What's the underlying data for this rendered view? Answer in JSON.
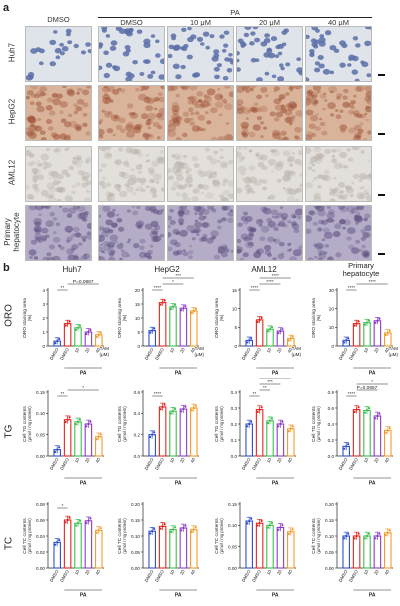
{
  "panel_a": {
    "letter": "a",
    "treatment_label": "PA",
    "columns": [
      "DMSO",
      "DMSO",
      "10 μM",
      "20 μM",
      "40 μM"
    ],
    "rows": [
      {
        "label": "Huh7",
        "tint": "#dfe3ea",
        "cell": "#5b6fa8"
      },
      {
        "label": "HepG2",
        "tint": "#d9b49a",
        "cell": "#a0563c"
      },
      {
        "label": "AML12",
        "tint": "#e3e0dc",
        "cell": "#b9b2ac"
      },
      {
        "label": "Primary hepatocyte",
        "tint": "#b5adc8",
        "cell": "#5b4d7d"
      }
    ]
  },
  "panel_b": {
    "letter": "b",
    "row_tags": [
      "ORO",
      "TG",
      "TC"
    ],
    "group_label": "PA",
    "x_labels": [
      "DMSO",
      "DMSO",
      "10",
      "20",
      "40"
    ],
    "colors": [
      "#2f4fd0",
      "#e2261e",
      "#3cbf50",
      "#8e3ccb",
      "#f39c2b"
    ],
    "tam_label": "TAM",
    "tam_unit": "(μM)",
    "cell_lines": [
      "Huh7",
      "HepG2",
      "AML12",
      "Primary hepatocyte"
    ]
  },
  "chart_data": [
    {
      "type": "bar",
      "row": "ORO",
      "title": "Huh7",
      "ylabel": "ORO staining area(%)",
      "ylim": [
        0,
        4
      ],
      "yticks": [
        "0",
        "1",
        "2",
        "3",
        "4"
      ],
      "categories": [
        "DMSO",
        "DMSO",
        "10",
        "20",
        "40"
      ],
      "values": [
        0.35,
        1.6,
        1.3,
        1.0,
        0.8
      ],
      "annotations": [
        {
          "text": "**",
          "from": 0,
          "to": 1
        },
        {
          "text": "P=0.0987",
          "from": 1,
          "to": 4
        }
      ]
    },
    {
      "type": "bar",
      "row": "ORO",
      "title": "HepG2",
      "ylabel": "ORO staining area(%)",
      "ylim": [
        0,
        20
      ],
      "yticks": [
        "0",
        "5",
        "10",
        "15",
        "20"
      ],
      "categories": [
        "DMSO",
        "DMSO",
        "10",
        "20",
        "40"
      ],
      "values": [
        5.5,
        15.5,
        14.0,
        13.5,
        12.5
      ],
      "annotations": [
        {
          "text": "****",
          "from": 0,
          "to": 1
        },
        {
          "text": "*",
          "from": 1,
          "to": 3
        },
        {
          "text": "***",
          "from": 1,
          "to": 4
        }
      ]
    },
    {
      "type": "bar",
      "row": "ORO",
      "title": "AML12",
      "ylabel": "ORO staining area(%)",
      "ylim": [
        0,
        15
      ],
      "yticks": [
        "0",
        "5",
        "10",
        "15"
      ],
      "categories": [
        "DMSO",
        "DMSO",
        "10",
        "20",
        "40"
      ],
      "values": [
        1.5,
        7.0,
        4.5,
        4.0,
        2.0
      ],
      "annotations": [
        {
          "text": "****",
          "from": 0,
          "to": 1
        },
        {
          "text": "****",
          "from": 1,
          "to": 3
        },
        {
          "text": "****",
          "from": 1,
          "to": 4
        }
      ]
    },
    {
      "type": "bar",
      "row": "ORO",
      "title": "Primary hepatocyte",
      "ylabel": "ORO staining area(%)",
      "ylim": [
        0,
        30
      ],
      "yticks": [
        "0",
        "10",
        "20",
        "30"
      ],
      "categories": [
        "DMSO",
        "DMSO",
        "10",
        "20",
        "40"
      ],
      "values": [
        3.0,
        12.0,
        12.5,
        13.5,
        7.0
      ],
      "annotations": [
        {
          "text": "****",
          "from": 0,
          "to": 1
        },
        {
          "text": "****",
          "from": 1,
          "to": 4
        }
      ]
    },
    {
      "type": "bar",
      "row": "TG",
      "title": "",
      "ylabel": "Cell TG contents (μmol / mg protein)",
      "ylim": [
        0,
        0.15
      ],
      "yticks": [
        "0.00",
        "0.05",
        "0.10",
        "0.15"
      ],
      "categories": [
        "DMSO",
        "DMSO",
        "10",
        "20",
        "40"
      ],
      "values": [
        0.015,
        0.085,
        0.08,
        0.075,
        0.045
      ],
      "annotations": [
        {
          "text": "**",
          "from": 0,
          "to": 1
        },
        {
          "text": "*",
          "from": 1,
          "to": 4
        }
      ]
    },
    {
      "type": "bar",
      "row": "TG",
      "title": "",
      "ylabel": "Cell TG contents (μmol / mg protein)",
      "ylim": [
        0,
        0.6
      ],
      "yticks": [
        "0.0",
        "0.2",
        "0.4",
        "0.6"
      ],
      "categories": [
        "DMSO",
        "DMSO",
        "10",
        "20",
        "40"
      ],
      "values": [
        0.2,
        0.46,
        0.42,
        0.44,
        0.45
      ],
      "annotations": [
        {
          "text": "****",
          "from": 0,
          "to": 1
        }
      ]
    },
    {
      "type": "bar",
      "row": "TG",
      "title": "",
      "ylabel": "Cell TG contents (μmol / mg protein)",
      "ylim": [
        0,
        0.4
      ],
      "yticks": [
        "0.0",
        "0.1",
        "0.2",
        "0.3",
        "0.4"
      ],
      "categories": [
        "DMSO",
        "DMSO",
        "10",
        "20",
        "40"
      ],
      "values": [
        0.2,
        0.29,
        0.22,
        0.2,
        0.17
      ],
      "annotations": [
        {
          "text": "**",
          "from": 0,
          "to": 1
        },
        {
          "text": "**",
          "from": 1,
          "to": 2
        },
        {
          "text": "***",
          "from": 1,
          "to": 3
        },
        {
          "text": "***",
          "from": 1,
          "to": 4
        }
      ]
    },
    {
      "type": "bar",
      "row": "TG",
      "title": "",
      "ylabel": "Cell TG contents (μmol / mg protein)",
      "ylim": [
        0,
        0.8
      ],
      "yticks": [
        "0.0",
        "0.2",
        "0.4",
        "0.6",
        "0.8"
      ],
      "categories": [
        "DMSO",
        "DMSO",
        "10",
        "20",
        "40"
      ],
      "values": [
        0.12,
        0.58,
        0.57,
        0.5,
        0.32
      ],
      "annotations": [
        {
          "text": "****",
          "from": 0,
          "to": 1
        },
        {
          "text": "P=0.0657",
          "from": 1,
          "to": 3
        },
        {
          "text": "*",
          "from": 1,
          "to": 4
        }
      ]
    },
    {
      "type": "bar",
      "row": "TC",
      "title": "",
      "ylabel": "Cell TC contents (μmol / mg protein)",
      "ylim": [
        0,
        0.08
      ],
      "yticks": [
        "0.00",
        "0.02",
        "0.04",
        "0.06",
        "0.08"
      ],
      "categories": [
        "DMSO",
        "DMSO",
        "10",
        "20",
        "40"
      ],
      "values": [
        0.032,
        0.06,
        0.056,
        0.059,
        0.047
      ],
      "annotations": [
        {
          "text": "*",
          "from": 0,
          "to": 1
        }
      ]
    },
    {
      "type": "bar",
      "row": "TC",
      "title": "",
      "ylabel": "Cell TC contents (μmol / mg protein)",
      "ylim": [
        0,
        0.2
      ],
      "yticks": [
        "0.00",
        "0.05",
        "0.10",
        "0.15",
        "0.20"
      ],
      "categories": [
        "DMSO",
        "DMSO",
        "10",
        "20",
        "40"
      ],
      "values": [
        0.115,
        0.13,
        0.12,
        0.125,
        0.12
      ],
      "annotations": []
    },
    {
      "type": "bar",
      "row": "TC",
      "title": "",
      "ylabel": "Cell TC contents (μmol / mg protein)",
      "ylim": [
        0,
        0.15
      ],
      "yticks": [
        "0.00",
        "0.05",
        "0.10",
        "0.15"
      ],
      "categories": [
        "DMSO",
        "DMSO",
        "10",
        "20",
        "40"
      ],
      "values": [
        0.11,
        0.105,
        0.1,
        0.095,
        0.085
      ],
      "annotations": []
    },
    {
      "type": "bar",
      "row": "TC",
      "title": "",
      "ylabel": "Cell TC contents (μmol / mg protein)",
      "ylim": [
        0,
        0.2
      ],
      "yticks": [
        "0.00",
        "0.05",
        "0.10",
        "0.15",
        "0.20"
      ],
      "categories": [
        "DMSO",
        "DMSO",
        "10",
        "20",
        "40"
      ],
      "values": [
        0.1,
        0.1,
        0.1,
        0.1,
        0.11
      ],
      "annotations": []
    }
  ]
}
